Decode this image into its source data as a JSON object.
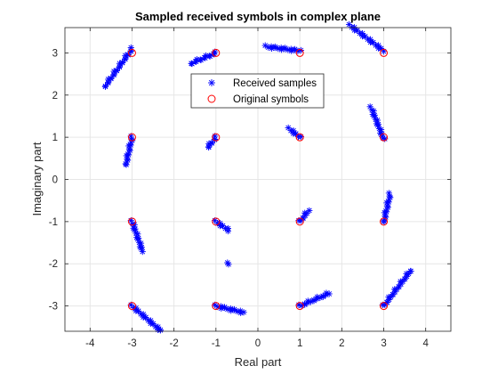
{
  "chart_data": {
    "type": "scatter",
    "title": "Sampled received symbols in complex plane",
    "xlabel": "Real part",
    "ylabel": "Imaginary part",
    "xlim": [
      -4.6,
      4.6
    ],
    "ylim": [
      -3.6,
      3.6
    ],
    "xticks": [
      -4,
      -3,
      -2,
      -1,
      0,
      1,
      2,
      3,
      4
    ],
    "yticks": [
      -3,
      -2,
      -1,
      0,
      1,
      2,
      3
    ],
    "grid": true,
    "legend": {
      "placement": "upper-center",
      "entries": [
        "Received samples",
        "Original symbols"
      ]
    },
    "series": [
      {
        "name": "Received samples",
        "marker": "asterisk",
        "color": "#0000ff",
        "clusters": [
          {
            "from": [
              -3.0,
              3.1
            ],
            "to": [
              -3.65,
              2.2
            ]
          },
          {
            "from": [
              -1.0,
              3.0
            ],
            "to": [
              -1.6,
              2.75
            ]
          },
          {
            "from": [
              0.2,
              3.15
            ],
            "to": [
              1.0,
              3.05
            ]
          },
          {
            "from": [
              2.2,
              3.65
            ],
            "to": [
              3.0,
              3.05
            ]
          },
          {
            "from": [
              -3.0,
              1.0
            ],
            "to": [
              -3.15,
              0.35
            ]
          },
          {
            "from": [
              -1.0,
              1.0
            ],
            "to": [
              -1.2,
              0.75
            ]
          },
          {
            "from": [
              0.75,
              1.2
            ],
            "to": [
              1.0,
              1.0
            ]
          },
          {
            "from": [
              2.7,
              1.7
            ],
            "to": [
              3.0,
              0.95
            ]
          },
          {
            "from": [
              3.15,
              -0.35
            ],
            "to": [
              3.0,
              -1.0
            ]
          },
          {
            "from": [
              -3.0,
              -1.0
            ],
            "to": [
              -2.75,
              -1.7
            ]
          },
          {
            "from": [
              -1.0,
              -1.0
            ],
            "to": [
              -0.7,
              -1.2
            ]
          },
          {
            "from": [
              1.0,
              -1.0
            ],
            "to": [
              1.2,
              -0.75
            ]
          },
          {
            "from": [
              -0.7,
              -2.0
            ],
            "to": [
              -0.7,
              -2.0
            ]
          },
          {
            "from": [
              -3.0,
              -3.0
            ],
            "to": [
              -2.3,
              -3.6
            ]
          },
          {
            "from": [
              -1.0,
              -3.0
            ],
            "to": [
              -0.35,
              -3.15
            ]
          },
          {
            "from": [
              1.0,
              -3.0
            ],
            "to": [
              1.7,
              -2.7
            ]
          },
          {
            "from": [
              3.0,
              -3.0
            ],
            "to": [
              3.65,
              -2.15
            ]
          }
        ]
      },
      {
        "name": "Original symbols",
        "marker": "circle",
        "color": "#ff0000",
        "points": [
          [
            -3,
            3
          ],
          [
            -1,
            3
          ],
          [
            1,
            3
          ],
          [
            3,
            3
          ],
          [
            -3,
            1
          ],
          [
            -1,
            1
          ],
          [
            1,
            1
          ],
          [
            3,
            1
          ],
          [
            -3,
            -1
          ],
          [
            -1,
            -1
          ],
          [
            1,
            -1
          ],
          [
            3,
            -1
          ],
          [
            -3,
            -3
          ],
          [
            -1,
            -3
          ],
          [
            1,
            -3
          ],
          [
            3,
            -3
          ]
        ]
      }
    ]
  }
}
